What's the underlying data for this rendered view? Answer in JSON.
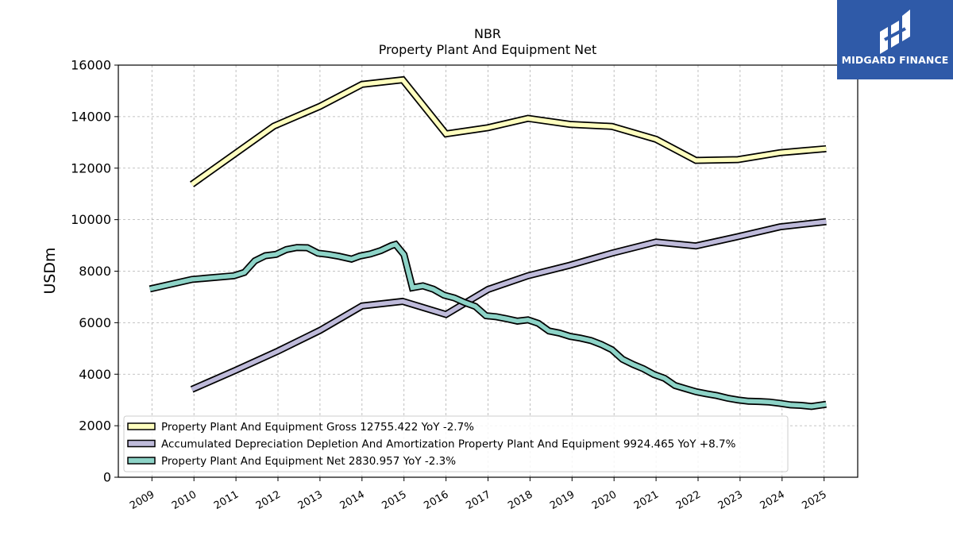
{
  "chart_data": {
    "type": "line",
    "title": "NBR",
    "subtitle": "Property Plant And Equipment Net",
    "ylabel": "USDm",
    "ylim": [
      0,
      16000
    ],
    "xlim": [
      2008.2,
      2025.8
    ],
    "y_ticks": [
      0,
      2000,
      4000,
      6000,
      8000,
      10000,
      12000,
      14000,
      16000
    ],
    "x_ticks": [
      "2009",
      "2010",
      "2011",
      "2012",
      "2013",
      "2014",
      "2015",
      "2016",
      "2017",
      "2018",
      "2019",
      "2020",
      "2021",
      "2022",
      "2023",
      "2024",
      "2025"
    ],
    "grid": true,
    "legend_position": "bottom-left",
    "series": [
      {
        "name": "Property Plant And Equipment Gross",
        "legend_label": "Property Plant And Equipment Gross  12755.422 YoY -2.7%",
        "color": "#ffffbf",
        "points": [
          [
            2009.95,
            11370
          ],
          [
            2011.9,
            13630
          ],
          [
            2013.0,
            14400
          ],
          [
            2014.0,
            15250
          ],
          [
            2014.97,
            15430
          ],
          [
            2016.0,
            13330
          ],
          [
            2017.0,
            13570
          ],
          [
            2017.95,
            13930
          ],
          [
            2018.95,
            13700
          ],
          [
            2019.95,
            13620
          ],
          [
            2021.0,
            13120
          ],
          [
            2021.95,
            12300
          ],
          [
            2022.95,
            12330
          ],
          [
            2023.95,
            12600
          ],
          [
            2025.05,
            12755
          ]
        ]
      },
      {
        "name": "Accumulated Depreciation Depletion And Amortization Property Plant And Equipment",
        "legend_label": "Accumulated Depreciation Depletion And Amortization Property Plant And Equipment  9924.465 YoY +8.7%",
        "color": "#bebada",
        "points": [
          [
            2009.95,
            3410
          ],
          [
            2011.0,
            4160
          ],
          [
            2012.0,
            4900
          ],
          [
            2013.0,
            5700
          ],
          [
            2014.0,
            6650
          ],
          [
            2014.97,
            6830
          ],
          [
            2016.0,
            6320
          ],
          [
            2017.0,
            7290
          ],
          [
            2017.95,
            7820
          ],
          [
            2018.95,
            8230
          ],
          [
            2019.95,
            8700
          ],
          [
            2021.0,
            9130
          ],
          [
            2021.95,
            8980
          ],
          [
            2022.95,
            9340
          ],
          [
            2023.95,
            9720
          ],
          [
            2025.05,
            9924
          ]
        ]
      },
      {
        "name": "Property Plant And Equipment Net",
        "legend_label": "Property Plant And Equipment Net  2830.957 YoY -2.3%",
        "color": "#8dd3c7",
        "points": [
          [
            2008.95,
            7310
          ],
          [
            2009.95,
            7680
          ],
          [
            2010.95,
            7820
          ],
          [
            2011.2,
            7950
          ],
          [
            2011.45,
            8400
          ],
          [
            2011.7,
            8600
          ],
          [
            2011.95,
            8650
          ],
          [
            2012.2,
            8840
          ],
          [
            2012.45,
            8920
          ],
          [
            2012.7,
            8910
          ],
          [
            2012.95,
            8700
          ],
          [
            2013.2,
            8650
          ],
          [
            2013.45,
            8580
          ],
          [
            2013.75,
            8470
          ],
          [
            2013.95,
            8590
          ],
          [
            2014.2,
            8670
          ],
          [
            2014.45,
            8800
          ],
          [
            2014.7,
            8990
          ],
          [
            2014.8,
            9040
          ],
          [
            2015.0,
            8640
          ],
          [
            2015.2,
            7360
          ],
          [
            2015.45,
            7430
          ],
          [
            2015.7,
            7300
          ],
          [
            2015.95,
            7070
          ],
          [
            2016.2,
            6960
          ],
          [
            2016.45,
            6780
          ],
          [
            2016.7,
            6630
          ],
          [
            2016.95,
            6270
          ],
          [
            2017.2,
            6230
          ],
          [
            2017.45,
            6150
          ],
          [
            2017.7,
            6060
          ],
          [
            2017.95,
            6110
          ],
          [
            2018.2,
            5970
          ],
          [
            2018.45,
            5680
          ],
          [
            2018.7,
            5600
          ],
          [
            2018.95,
            5470
          ],
          [
            2019.2,
            5400
          ],
          [
            2019.45,
            5310
          ],
          [
            2019.7,
            5150
          ],
          [
            2019.95,
            4950
          ],
          [
            2020.2,
            4580
          ],
          [
            2020.45,
            4380
          ],
          [
            2020.7,
            4210
          ],
          [
            2020.95,
            3990
          ],
          [
            2021.2,
            3840
          ],
          [
            2021.45,
            3560
          ],
          [
            2021.7,
            3440
          ],
          [
            2021.95,
            3320
          ],
          [
            2022.2,
            3240
          ],
          [
            2022.45,
            3170
          ],
          [
            2022.7,
            3070
          ],
          [
            2022.95,
            3000
          ],
          [
            2023.2,
            2950
          ],
          [
            2023.45,
            2940
          ],
          [
            2023.7,
            2920
          ],
          [
            2023.95,
            2870
          ],
          [
            2024.2,
            2810
          ],
          [
            2024.45,
            2790
          ],
          [
            2024.7,
            2750
          ],
          [
            2025.05,
            2831
          ]
        ]
      }
    ]
  },
  "logo": {
    "text": "MIDGARD FINANCE",
    "icon": "midgard-logo-icon",
    "background": "#2f5aa8"
  }
}
